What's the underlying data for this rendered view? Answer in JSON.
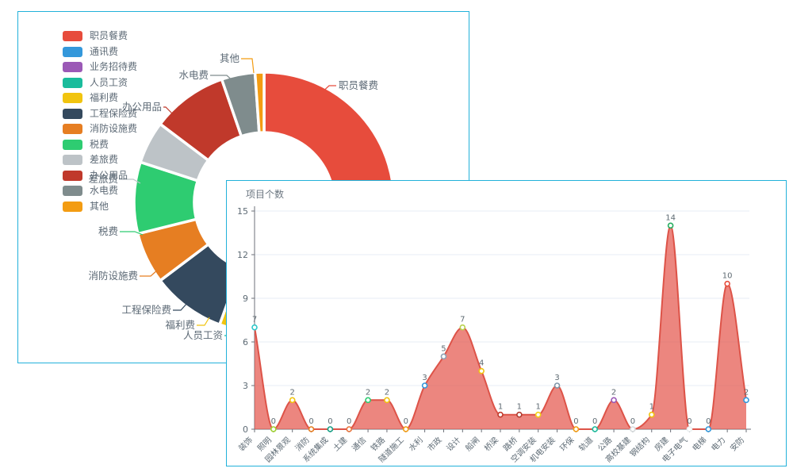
{
  "donut_panel": {
    "legend_title": "",
    "visible_callouts": [
      "职员餐费",
      "其他",
      "水电费",
      "办公用品",
      "差旅费",
      "税费",
      "消防设施费",
      "工程保险费",
      "福利费",
      "人员工资"
    ]
  },
  "area_panel": {
    "title": "项目个数"
  },
  "colors": {
    "panel_border": "#22b1da",
    "area_fill": "rgba(228,87,77,0.72)",
    "area_line": "#dd5348",
    "grid": "#e7edf6",
    "axis": "#6e7079",
    "text": "#5e6b75",
    "donut_border": "#ffffff"
  },
  "chart_data": [
    {
      "type": "pie",
      "title": "expense-category-donut",
      "labels": [
        "职员餐费",
        "通讯费",
        "业务招待费",
        "人员工资",
        "福利费",
        "工程保险费",
        "消防设施费",
        "税费",
        "差旅费",
        "办公用品",
        "水电费",
        "其他"
      ],
      "colors": [
        "#e74c3c",
        "#3498db",
        "#9b59b6",
        "#1abc9c",
        "#f1c40f",
        "#34495e",
        "#e67e22",
        "#2ecc71",
        "#bdc3c7",
        "#c0392b",
        "#7f8c8d",
        "#f39c12"
      ],
      "angles_deg": [
        [
          0,
          96
        ],
        [
          96,
          138
        ],
        [
          138,
          149
        ],
        [
          149,
          192
        ],
        [
          192,
          200
        ],
        [
          200,
          233
        ],
        [
          233,
          256
        ],
        [
          256,
          288
        ],
        [
          288,
          307
        ],
        [
          307,
          341
        ],
        [
          341,
          356
        ],
        [
          356,
          360
        ]
      ],
      "percents": [
        26.7,
        11.7,
        3.1,
        11.9,
        2.2,
        9.2,
        6.4,
        8.9,
        5.3,
        9.4,
        4.2,
        1.1
      ],
      "legend_position": "left",
      "inner_radius_ratio": 0.54
    },
    {
      "type": "area",
      "title": "项目个数",
      "categories": [
        "装饰",
        "照明",
        "园林景观",
        "消防",
        "系统集成",
        "土建",
        "通信",
        "铁路",
        "隧道施工",
        "水利",
        "市政",
        "设计",
        "船闸",
        "桥梁",
        "路桥",
        "空调安装",
        "机电安装",
        "环保",
        "轨道",
        "公路",
        "高校基建",
        "钢结构",
        "房建",
        "电子电气",
        "电梯",
        "电力",
        "安防"
      ],
      "values": [
        7,
        0,
        2,
        0,
        0,
        0,
        2,
        2,
        0,
        3,
        5,
        7,
        4,
        1,
        1,
        1,
        3,
        0,
        0,
        2,
        0,
        1,
        14,
        0,
        0,
        10,
        2
      ],
      "marker_colors": [
        "#2ec7c9",
        "#9fd131",
        "#f1c40f",
        "#e67e22",
        "#16a085",
        "#e8743b",
        "#2ecc71",
        "#f1c40f",
        "#f39c12",
        "#3498db",
        "#8e9fb3",
        "#b8d14c",
        "#f1c40f",
        "#c0392b",
        "#b03a2e",
        "#f4d313",
        "#7f95a8",
        "#f39c12",
        "#1abc9c",
        "#9b59b6",
        "#d7dbdd",
        "#f1c40f",
        "#27ae60",
        "#ecf0f1",
        "#3498db",
        "#e74c3c",
        "#3498db"
      ],
      "ylim": [
        0,
        15
      ],
      "y_ticks": [
        0,
        3,
        6,
        9,
        12,
        15
      ],
      "grid": true,
      "smooth": true,
      "xlabel": "",
      "ylabel": ""
    }
  ]
}
